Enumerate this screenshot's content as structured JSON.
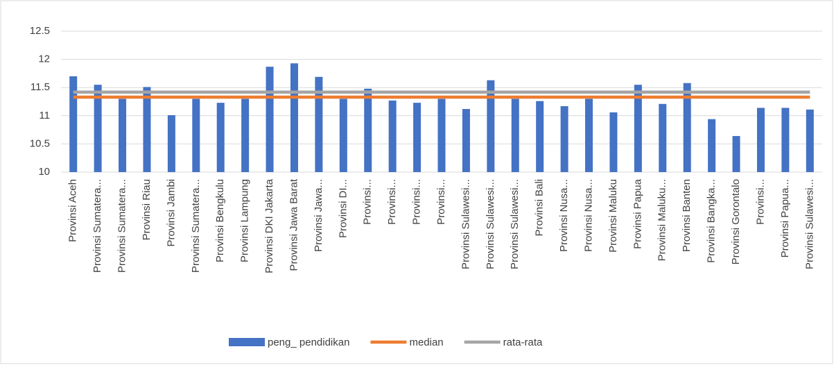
{
  "chart_data": {
    "type": "bar_line",
    "categories": [
      "Provinsi Aceh",
      "Provinsi Sumatera...",
      "Provinsi Sumatera...",
      "Provinsi Riau",
      "Provinsi Jambi",
      "Provinsi Sumatera...",
      "Provinsi Bengkulu",
      "Provinsi Lampung",
      "Provinsi DKI Jakarta",
      "Provinsi Jawa Barat",
      "Provinsi Jawa...",
      "Provinsi DI...",
      "Provinsi...",
      "Provinsi...",
      "Provinsi...",
      "Provinsi...",
      "Provinsi Sulawesi...",
      "Provinsi Sulawesi...",
      "Provinsi Sulawesi...",
      "Provinsi Bali",
      "Provinsi Nusa...",
      "Provinsi Nusa...",
      "Provinsi Maluku",
      "Provinsi Papua",
      "Provinsi Maluku...",
      "Provinsi Banten",
      "Provinsi Bangka...",
      "Provinsi Gorontalo",
      "Provinsi...",
      "Provinsi Papua...",
      "Provinsi Sulawesi..."
    ],
    "series": [
      {
        "name": "peng_ pendidikan",
        "kind": "bar",
        "color": "#4472c4",
        "values": [
          11.7,
          11.55,
          11.3,
          11.51,
          11.01,
          11.3,
          11.23,
          11.3,
          11.87,
          11.93,
          11.69,
          11.3,
          11.48,
          11.27,
          11.23,
          11.3,
          11.12,
          11.63,
          11.3,
          11.26,
          11.17,
          11.3,
          11.06,
          11.55,
          11.21,
          11.58,
          10.94,
          10.64,
          11.14,
          11.14,
          11.11
        ]
      },
      {
        "name": "median",
        "kind": "line",
        "color": "#ed7d31",
        "values": [
          11.33,
          11.33,
          11.33,
          11.33,
          11.33,
          11.33,
          11.33,
          11.33,
          11.33,
          11.33,
          11.33,
          11.33,
          11.33,
          11.33,
          11.33,
          11.33,
          11.33,
          11.33,
          11.33,
          11.33,
          11.33,
          11.33,
          11.33,
          11.33,
          11.33,
          11.33,
          11.33,
          11.33,
          11.33,
          11.33,
          11.33
        ]
      },
      {
        "name": "rata-rata",
        "kind": "line",
        "color": "#a5a5a5",
        "values": [
          11.42,
          11.42,
          11.42,
          11.42,
          11.42,
          11.42,
          11.42,
          11.42,
          11.42,
          11.42,
          11.42,
          11.42,
          11.42,
          11.42,
          11.42,
          11.42,
          11.42,
          11.42,
          11.42,
          11.42,
          11.42,
          11.42,
          11.42,
          11.42,
          11.42,
          11.42,
          11.42,
          11.42,
          11.42,
          11.42,
          11.42
        ]
      }
    ],
    "ylim": [
      10,
      12.5
    ],
    "yticks": [
      10,
      10.5,
      11,
      11.5,
      12,
      12.5
    ],
    "grid": true,
    "legend": "bottom"
  }
}
